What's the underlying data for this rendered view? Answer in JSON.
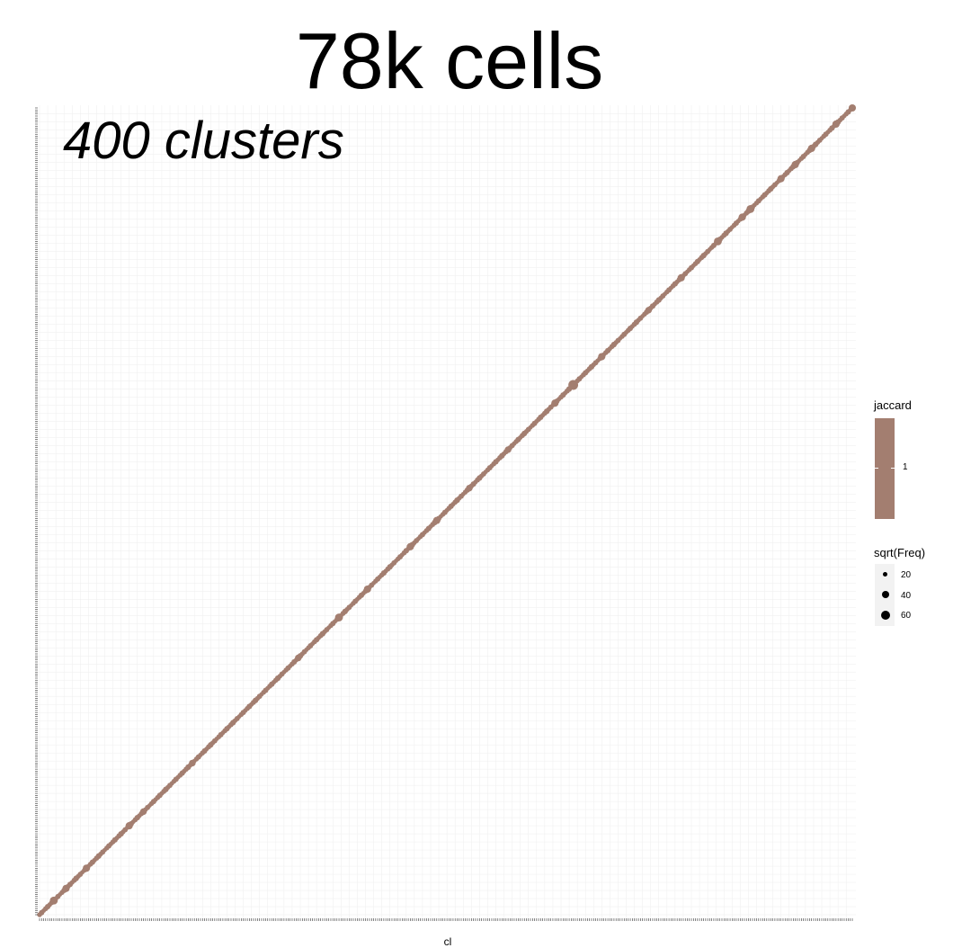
{
  "title": "78k cells",
  "overlay_text": "400 clusters",
  "colors": {
    "mark": "#a37e70",
    "grid": "#eeeeee",
    "legend_bg": "#f2f2f2"
  },
  "chart_data": {
    "type": "scatter",
    "title": "78k cells",
    "xlabel": "cl",
    "ylabel": "",
    "n_clusters": 400,
    "x_range": [
      1,
      400
    ],
    "y_range": [
      1,
      400
    ],
    "grid": true,
    "legend_position": "right",
    "color_legend": {
      "title": "jaccard",
      "breaks": [
        1
      ],
      "break_labels": [
        "1"
      ],
      "color": "#a37e70"
    },
    "size_legend": {
      "title": "sqrt(Freq)",
      "breaks": [
        20,
        40,
        60
      ],
      "break_labels": [
        "20",
        "40",
        "60"
      ]
    },
    "series": [
      {
        "x": "1..400",
        "y": "1..400",
        "jaccard": 1,
        "pattern": "identity diagonal"
      }
    ],
    "large_points": [
      {
        "i": 8,
        "sqrtFreq": 40
      },
      {
        "i": 14,
        "sqrtFreq": 35
      },
      {
        "i": 24,
        "sqrtFreq": 35
      },
      {
        "i": 45,
        "sqrtFreq": 35
      },
      {
        "i": 52,
        "sqrtFreq": 30
      },
      {
        "i": 76,
        "sqrtFreq": 30
      },
      {
        "i": 128,
        "sqrtFreq": 30
      },
      {
        "i": 148,
        "sqrtFreq": 40
      },
      {
        "i": 162,
        "sqrtFreq": 35
      },
      {
        "i": 183,
        "sqrtFreq": 35
      },
      {
        "i": 196,
        "sqrtFreq": 35
      },
      {
        "i": 212,
        "sqrtFreq": 30
      },
      {
        "i": 231,
        "sqrtFreq": 30
      },
      {
        "i": 254,
        "sqrtFreq": 35
      },
      {
        "i": 263,
        "sqrtFreq": 55
      },
      {
        "i": 277,
        "sqrtFreq": 35
      },
      {
        "i": 300,
        "sqrtFreq": 30
      },
      {
        "i": 316,
        "sqrtFreq": 35
      },
      {
        "i": 334,
        "sqrtFreq": 40
      },
      {
        "i": 346,
        "sqrtFreq": 35
      },
      {
        "i": 350,
        "sqrtFreq": 40
      },
      {
        "i": 365,
        "sqrtFreq": 35
      },
      {
        "i": 372,
        "sqrtFreq": 35
      },
      {
        "i": 380,
        "sqrtFreq": 35
      },
      {
        "i": 392,
        "sqrtFreq": 35
      },
      {
        "i": 400,
        "sqrtFreq": 35
      }
    ]
  }
}
